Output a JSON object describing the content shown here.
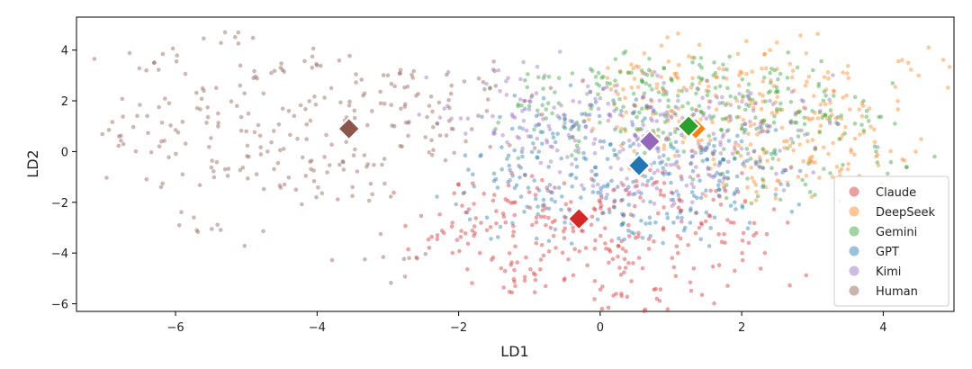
{
  "chart_data": {
    "type": "scatter",
    "title": "",
    "xlabel": "LD1",
    "ylabel": "LD2",
    "xlim": [
      -7.4,
      5.0
    ],
    "ylim": [
      -6.3,
      5.3
    ],
    "xticks": [
      -6,
      -4,
      -2,
      0,
      2,
      4
    ],
    "yticks": [
      -6,
      -4,
      -2,
      0,
      2,
      4
    ],
    "grid": false,
    "legend_position": "bottom-right",
    "series": [
      {
        "name": "Claude",
        "color": "#d62728",
        "centroid": [
          -0.3,
          -2.65
        ],
        "sample_points": [
          [
            -0.3,
            -2.7
          ],
          [
            -1.2,
            -2.0
          ],
          [
            0.5,
            -3.4
          ],
          [
            -0.8,
            -4.1
          ],
          [
            0.9,
            -2.2
          ],
          [
            -1.6,
            -3.1
          ],
          [
            0.2,
            -1.5
          ],
          [
            -0.5,
            -5.0
          ],
          [
            1.4,
            -3.0
          ],
          [
            -1.9,
            -2.4
          ],
          [
            0.6,
            -4.6
          ],
          [
            -1.0,
            -1.6
          ],
          [
            1.8,
            -2.7
          ],
          [
            -0.2,
            -3.8
          ],
          [
            -1.4,
            -4.6
          ],
          [
            0.8,
            -1.2
          ],
          [
            -2.3,
            -3.3
          ],
          [
            1.1,
            -4.0
          ],
          [
            0.0,
            -2.0
          ],
          [
            -0.7,
            -3.0
          ],
          [
            1.9,
            -4.7
          ],
          [
            -1.2,
            -5.3
          ],
          [
            0.3,
            -5.6
          ],
          [
            0.8,
            -5.8
          ],
          [
            -2.0,
            -1.3
          ],
          [
            2.1,
            -3.6
          ],
          [
            -0.9,
            -2.6
          ],
          [
            0.4,
            -2.9
          ],
          [
            -1.7,
            -4.0
          ],
          [
            1.6,
            -1.9
          ]
        ]
      },
      {
        "name": "DeepSeek",
        "color": "#ff7f0e",
        "centroid": [
          1.35,
          0.9
        ],
        "sample_points": [
          [
            1.4,
            1.0
          ],
          [
            2.3,
            2.2
          ],
          [
            0.8,
            2.5
          ],
          [
            3.0,
            1.3
          ],
          [
            1.9,
            0.2
          ],
          [
            2.7,
            -0.6
          ],
          [
            0.5,
            1.8
          ],
          [
            3.4,
            0.5
          ],
          [
            1.1,
            2.9
          ],
          [
            2.0,
            3.1
          ],
          [
            3.7,
            1.9
          ],
          [
            2.5,
            1.6
          ],
          [
            0.3,
            0.9
          ],
          [
            1.6,
            -0.3
          ],
          [
            2.9,
            2.6
          ],
          [
            3.9,
            -0.2
          ],
          [
            1.3,
            3.7
          ],
          [
            2.4,
            4.0
          ],
          [
            4.5,
            3.0
          ],
          [
            3.5,
            -0.7
          ],
          [
            2.2,
            -1.3
          ],
          [
            0.9,
            0.1
          ],
          [
            1.8,
            1.9
          ],
          [
            3.1,
            0.8
          ],
          [
            0.6,
            3.1
          ],
          [
            2.8,
            -1.0
          ],
          [
            1.0,
            1.4
          ],
          [
            3.3,
            2.4
          ],
          [
            2.6,
            0.4
          ],
          [
            1.5,
            2.4
          ]
        ]
      },
      {
        "name": "Gemini",
        "color": "#2ca02c",
        "centroid": [
          1.25,
          1.0
        ],
        "sample_points": [
          [
            1.2,
            1.1
          ],
          [
            0.2,
            1.9
          ],
          [
            2.1,
            1.8
          ],
          [
            0.7,
            2.6
          ],
          [
            2.8,
            0.6
          ],
          [
            1.6,
            3.0
          ],
          [
            -0.5,
            1.3
          ],
          [
            2.5,
            2.4
          ],
          [
            0.1,
            2.7
          ],
          [
            3.0,
            1.6
          ],
          [
            1.0,
            0.3
          ],
          [
            2.2,
            -0.4
          ],
          [
            1.8,
            2.5
          ],
          [
            -0.8,
            2.9
          ],
          [
            0.4,
            3.1
          ],
          [
            3.6,
            1.1
          ],
          [
            2.4,
            3.1
          ],
          [
            0.9,
            3.3
          ],
          [
            2.9,
            -1.3
          ],
          [
            -0.3,
            0.4
          ],
          [
            3.9,
            0.0
          ],
          [
            1.4,
            1.8
          ],
          [
            2.0,
            0.9
          ],
          [
            0.6,
            1.2
          ],
          [
            1.7,
            -0.9
          ],
          [
            2.7,
            1.2
          ],
          [
            -1.0,
            1.8
          ],
          [
            3.3,
            2.2
          ],
          [
            1.1,
            2.2
          ],
          [
            2.3,
            0.1
          ]
        ]
      },
      {
        "name": "GPT",
        "color": "#1f77b4",
        "centroid": [
          0.55,
          -0.55
        ],
        "sample_points": [
          [
            0.5,
            -0.5
          ],
          [
            -0.4,
            -0.9
          ],
          [
            1.3,
            -1.6
          ],
          [
            0.0,
            0.4
          ],
          [
            -0.8,
            -1.9
          ],
          [
            1.0,
            0.2
          ],
          [
            0.2,
            -2.2
          ],
          [
            1.8,
            -0.8
          ],
          [
            -1.1,
            -0.2
          ],
          [
            0.7,
            -2.6
          ],
          [
            -0.3,
            1.0
          ],
          [
            1.5,
            -2.4
          ],
          [
            -1.3,
            -1.2
          ],
          [
            0.4,
            -1.4
          ],
          [
            2.0,
            0.4
          ],
          [
            -0.6,
            0.7
          ],
          [
            1.2,
            -3.0
          ],
          [
            -1.6,
            -2.6
          ],
          [
            0.9,
            -0.9
          ],
          [
            -0.1,
            -1.6
          ],
          [
            1.6,
            -0.1
          ],
          [
            -0.9,
            1.4
          ],
          [
            0.3,
            1.6
          ],
          [
            -1.8,
            -0.9
          ],
          [
            2.3,
            -1.4
          ],
          [
            0.6,
            -3.4
          ],
          [
            -0.5,
            -2.8
          ],
          [
            1.1,
            0.9
          ],
          [
            -0.2,
            -0.3
          ],
          [
            1.9,
            -2.0
          ]
        ]
      },
      {
        "name": "Kimi",
        "color": "#9467bd",
        "centroid": [
          0.7,
          0.4
        ],
        "sample_points": [
          [
            0.7,
            0.4
          ],
          [
            1.5,
            1.3
          ],
          [
            -0.2,
            1.0
          ],
          [
            0.3,
            -0.7
          ],
          [
            1.9,
            0.1
          ],
          [
            -0.7,
            0.2
          ],
          [
            1.1,
            2.0
          ],
          [
            0.0,
            2.1
          ],
          [
            2.4,
            1.0
          ],
          [
            -1.1,
            1.6
          ],
          [
            0.6,
            -1.3
          ],
          [
            1.7,
            -0.9
          ],
          [
            -0.4,
            -0.5
          ],
          [
            0.9,
            2.7
          ],
          [
            2.7,
            0.5
          ],
          [
            -1.5,
            0.8
          ],
          [
            1.3,
            -0.2
          ],
          [
            0.2,
            1.6
          ],
          [
            2.1,
            2.2
          ],
          [
            -0.9,
            2.3
          ],
          [
            0.5,
            0.6
          ],
          [
            1.6,
            0.7
          ],
          [
            -1.3,
            2.9
          ],
          [
            2.9,
            1.7
          ],
          [
            0.1,
            -1.7
          ],
          [
            1.0,
            -1.9
          ],
          [
            -0.6,
            1.4
          ],
          [
            2.2,
            -0.5
          ],
          [
            0.8,
            1.2
          ],
          [
            -2.1,
            1.3
          ]
        ]
      },
      {
        "name": "Human",
        "color": "#8c564b",
        "centroid": [
          -3.55,
          0.9
        ],
        "sample_points": [
          [
            -3.6,
            0.9
          ],
          [
            -4.4,
            1.6
          ],
          [
            -2.8,
            0.2
          ],
          [
            -5.0,
            0.8
          ],
          [
            -3.1,
            1.9
          ],
          [
            -4.1,
            -0.4
          ],
          [
            -2.3,
            1.1
          ],
          [
            -5.4,
            1.5
          ],
          [
            -3.8,
            2.5
          ],
          [
            -4.7,
            0.0
          ],
          [
            -2.6,
            2.2
          ],
          [
            -6.2,
            0.4
          ],
          [
            -3.3,
            -0.6
          ],
          [
            -5.6,
            2.4
          ],
          [
            -1.9,
            0.4
          ],
          [
            -4.9,
            2.9
          ],
          [
            -6.4,
            1.4
          ],
          [
            -3.0,
            3.0
          ],
          [
            -5.3,
            -0.7
          ],
          [
            -2.1,
            2.6
          ],
          [
            -6.8,
            0.6
          ],
          [
            -4.0,
            3.4
          ],
          [
            -5.9,
            -0.9
          ],
          [
            -1.6,
            1.6
          ],
          [
            -4.3,
            -1.5
          ],
          [
            -3.5,
            -1.4
          ],
          [
            -5.7,
            -3.1
          ],
          [
            -5.3,
            4.7
          ],
          [
            -6.3,
            3.5
          ],
          [
            -2.7,
            -4.2
          ]
        ]
      }
    ]
  }
}
